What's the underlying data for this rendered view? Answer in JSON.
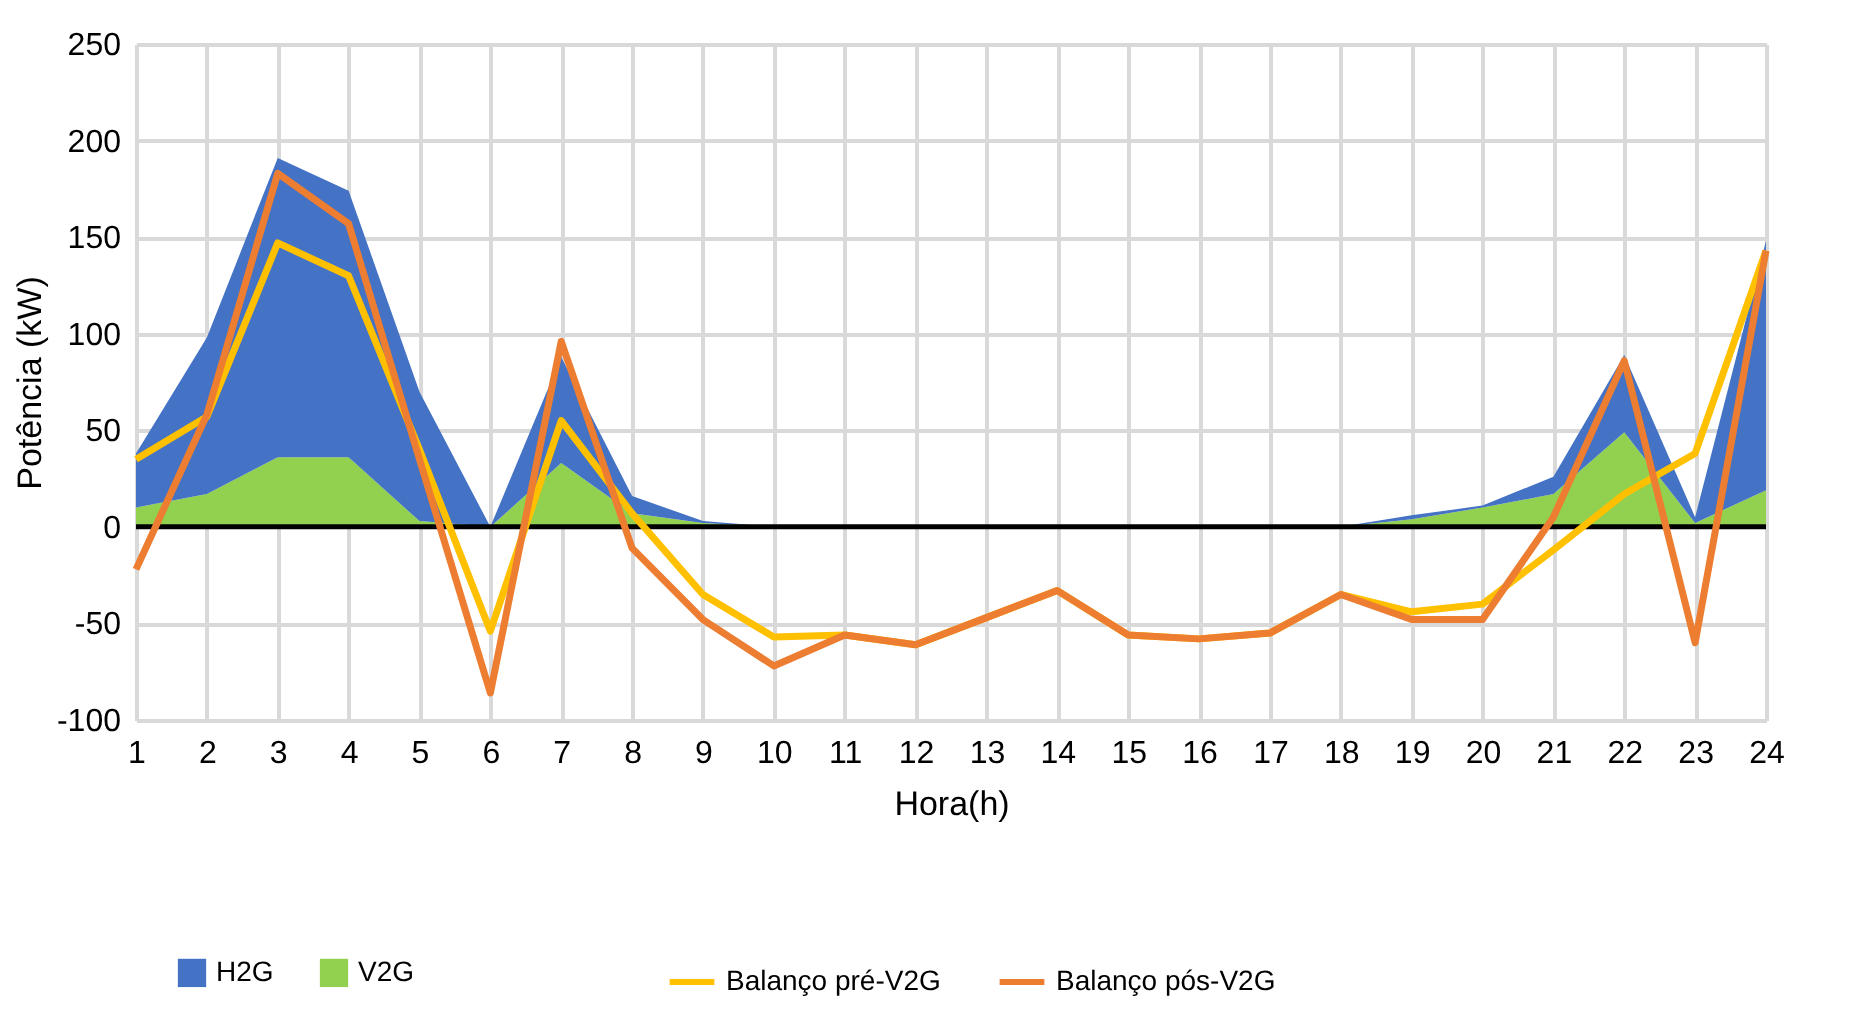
{
  "chart_data": {
    "type": "area",
    "xlabel": "Hora(h)",
    "ylabel": "Potência (kW)",
    "x": [
      1,
      2,
      3,
      4,
      5,
      6,
      7,
      8,
      9,
      10,
      11,
      12,
      13,
      14,
      15,
      16,
      17,
      18,
      19,
      20,
      21,
      22,
      23,
      24
    ],
    "stacked": true,
    "series": [
      {
        "name": "V2G",
        "color": "#92d050",
        "values": [
          10,
          17,
          36,
          36,
          3,
          0,
          33,
          7,
          2,
          0,
          0,
          0,
          0,
          0,
          0,
          0,
          0,
          0,
          4,
          10,
          17,
          49,
          2,
          19
        ]
      },
      {
        "name": "H2G",
        "color": "#4472c4",
        "values": [
          28,
          81,
          155,
          138,
          67,
          0,
          55,
          9,
          1,
          0,
          0,
          0,
          0,
          0,
          0,
          0,
          0,
          0,
          2,
          1,
          9,
          40,
          3,
          129
        ]
      },
      {
        "name": "Balanço pré-V2G",
        "type": "line",
        "color": "#ffc000",
        "values": [
          35,
          57,
          147,
          130,
          40,
          -54,
          55,
          7,
          -35,
          -57,
          -56,
          -61,
          -47,
          -33,
          -56,
          -58,
          -55,
          -35,
          -44,
          -40,
          -12,
          17,
          38,
          143
        ]
      },
      {
        "name": "Balanço pós-V2G",
        "type": "line",
        "color": "#ed7d31",
        "values": [
          -22,
          58,
          183,
          157,
          35,
          -86,
          96,
          -11,
          -48,
          -72,
          -56,
          -61,
          -47,
          -33,
          -56,
          -58,
          -55,
          -35,
          -48,
          -48,
          5,
          86,
          -60,
          143
        ]
      }
    ],
    "xlim": [
      1,
      24
    ],
    "xticks": [
      1,
      2,
      3,
      4,
      5,
      6,
      7,
      8,
      9,
      10,
      11,
      12,
      13,
      14,
      15,
      16,
      17,
      18,
      19,
      20,
      21,
      22,
      23,
      24
    ],
    "ylim": [
      -100,
      250
    ],
    "yticks": [
      -100,
      -50,
      0,
      50,
      100,
      150,
      200,
      250
    ],
    "ref_lines": [
      {
        "axis": "y",
        "value": 0,
        "color": "#000000"
      }
    ],
    "grid": true,
    "legend": "bottom",
    "marker": "none",
    "line_style": "solid"
  }
}
